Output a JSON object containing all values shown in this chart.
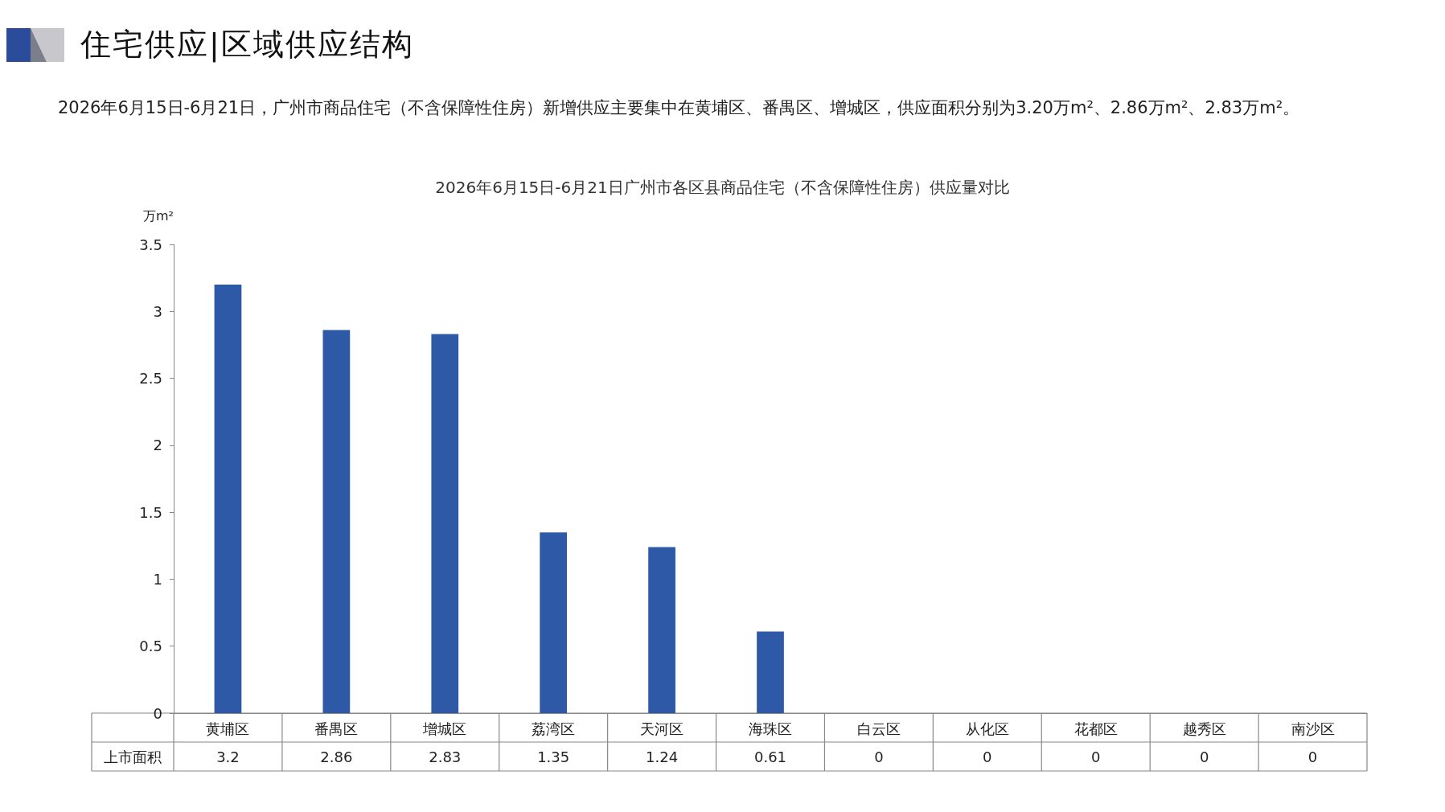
{
  "chart_data": {
    "type": "bar",
    "title": "住宅供应|区域供应结构",
    "subtitle": "2026年6月15日-6月21日，广州市商品住宅（不含保障性住房）新增供应主要集中在黄埔区、番禺区、增城区，供应面积分别为3.20万m²、2.86万m²、2.83万m²。",
    "annotations": [
      "2026年6月15日-6月21日广州市各区县商品住宅（不含保障性住房）供应量对比"
    ],
    "ylabel": "万m²",
    "categories": [
      "黄埔区",
      "番禺区",
      "增城区",
      "荔湾区",
      "天河区",
      "海珠区",
      "白云区",
      "从化区",
      "花都区",
      "越秀区",
      "南沙区"
    ],
    "series": [
      {
        "name": "上市面积",
        "color": "#2e59a7",
        "values": [
          3.2,
          2.86,
          2.83,
          1.35,
          1.24,
          0.61,
          0,
          0,
          0,
          0,
          0
        ]
      }
    ],
    "ylim": [
      0,
      3.5
    ],
    "yticks": [
      0,
      0.5,
      1,
      1.5,
      2,
      2.5,
      3,
      3.5
    ],
    "grid": false,
    "legend": false,
    "data_labels": true
  }
}
